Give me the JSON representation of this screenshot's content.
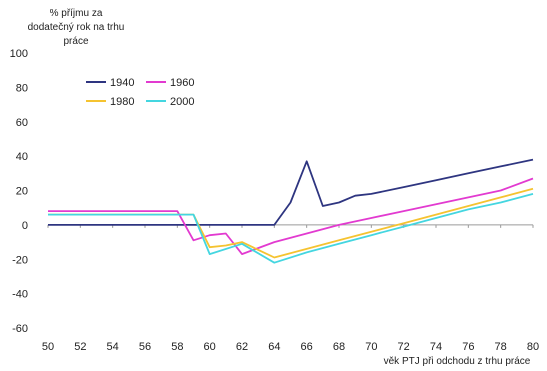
{
  "chart_data": {
    "type": "line",
    "title": "",
    "ylabel_lines": [
      "% příjmu za",
      "dodatečný rok na trhu",
      "práce"
    ],
    "xlabel": "věk PTJ při odchodu z trhu práce",
    "xlim": [
      50,
      80
    ],
    "ylim": [
      -60,
      100
    ],
    "x_ticks": [
      50,
      52,
      54,
      56,
      58,
      60,
      62,
      64,
      66,
      68,
      70,
      72,
      74,
      76,
      78,
      80
    ],
    "y_ticks": [
      100,
      80,
      60,
      40,
      20,
      0,
      -20,
      -40,
      -60
    ],
    "grid": false,
    "legend_position": "top-left",
    "series": [
      {
        "name": "1940",
        "color": "#2e3580",
        "x": [
          50,
          52,
          54,
          56,
          58,
          60,
          62,
          64,
          65,
          66,
          67,
          68,
          69,
          70,
          72,
          74,
          76,
          78,
          80
        ],
        "y": [
          0,
          0,
          0,
          0,
          0,
          0,
          0,
          0,
          13,
          37,
          11,
          13,
          17,
          18,
          22,
          26,
          30,
          34,
          38
        ]
      },
      {
        "name": "1960",
        "color": "#e23ad0",
        "x": [
          50,
          52,
          54,
          56,
          58,
          59,
          60,
          61,
          62,
          64,
          66,
          68,
          70,
          72,
          74,
          76,
          78,
          80
        ],
        "y": [
          8,
          8,
          8,
          8,
          8,
          -9,
          -6,
          -5,
          -17,
          -10,
          -5,
          0,
          4,
          8,
          12,
          16,
          20,
          27
        ]
      },
      {
        "name": "1980",
        "color": "#f5c330",
        "x": [
          50,
          52,
          54,
          56,
          58,
          59,
          60,
          61,
          62,
          64,
          66,
          68,
          70,
          72,
          74,
          76,
          78,
          80
        ],
        "y": [
          6,
          6,
          6,
          6,
          6,
          6,
          -13,
          -12,
          -10,
          -19,
          -14,
          -9,
          -4,
          1,
          6,
          11,
          16,
          21
        ]
      },
      {
        "name": "2000",
        "color": "#44d6e0",
        "x": [
          50,
          52,
          54,
          56,
          58,
          59,
          60,
          62,
          64,
          66,
          68,
          70,
          72,
          74,
          76,
          78,
          80
        ],
        "y": [
          6,
          6,
          6,
          6,
          6,
          6,
          -17,
          -11,
          -22,
          -16,
          -11,
          -6,
          -1,
          4,
          9,
          13,
          18
        ]
      }
    ]
  }
}
